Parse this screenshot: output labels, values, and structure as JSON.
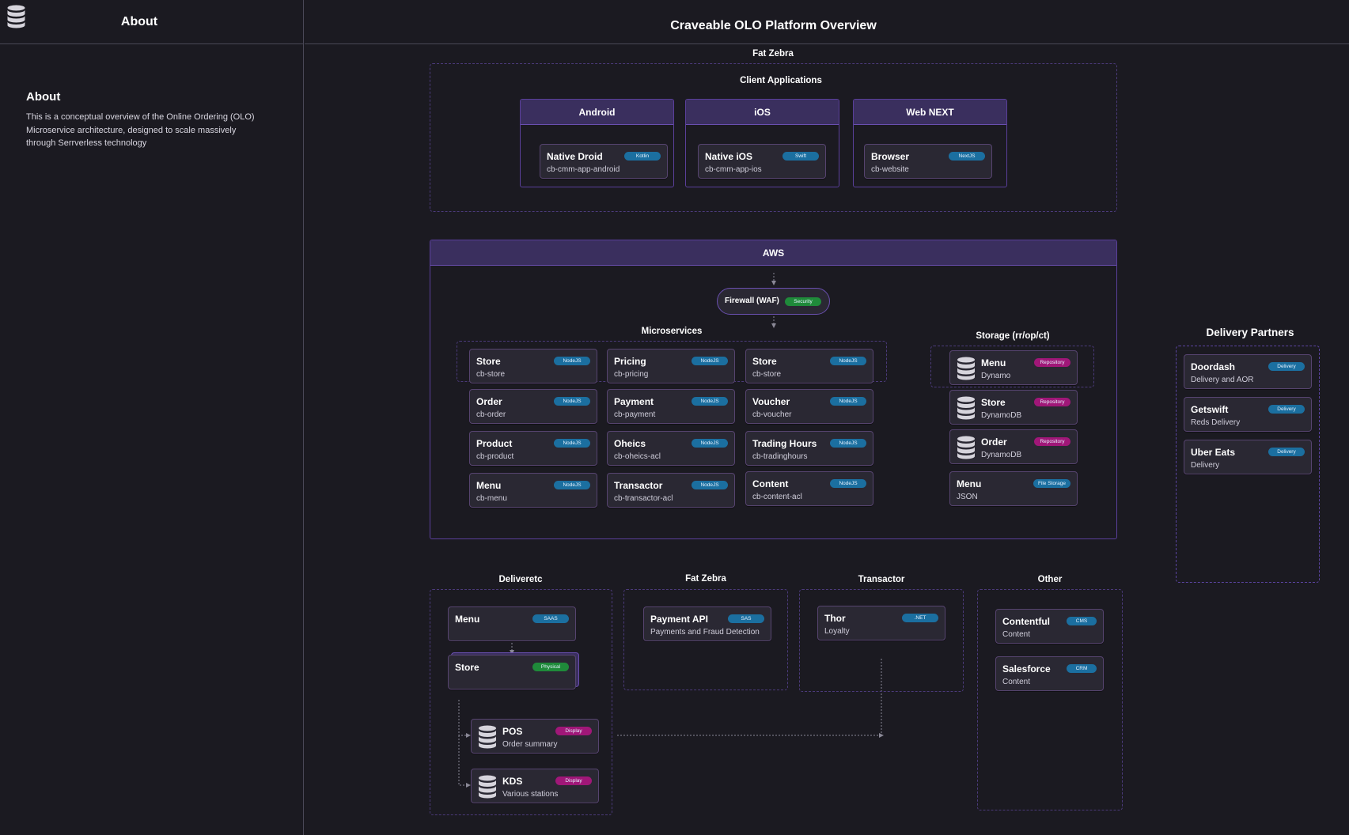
{
  "sidebar": {
    "title": "About",
    "logo_icon": "database-icon",
    "about_heading": "About",
    "about_text": "This is a conceptual overview of the Online Ordering (OLO) Microservice architecture, designed to scale massively through Serrverless technology"
  },
  "header": {
    "title": "Craveable OLO Platform Overview"
  },
  "fat_zebra_top": {
    "label": "Fat Zebra",
    "client_apps_label": "Client Applications",
    "platforms": [
      {
        "name": "Android",
        "card": {
          "title": "Native Droid",
          "sub": "cb-cmm-app-android",
          "tag": "Kotlin"
        }
      },
      {
        "name": "iOS",
        "card": {
          "title": "Native iOS",
          "sub": "cb-cmm-app-ios",
          "tag": "Swift"
        }
      },
      {
        "name": "Web NEXT",
        "card": {
          "title": "Browser",
          "sub": "cb-website",
          "tag": "NextJS"
        }
      }
    ]
  },
  "aws": {
    "label": "AWS",
    "firewall": {
      "title": "Firewall (WAF)",
      "tag": "Security"
    },
    "microservices_label": "Microservices",
    "microservices": [
      {
        "title": "Store",
        "sub": "cb-store",
        "tag": "NodeJS"
      },
      {
        "title": "Pricing",
        "sub": "cb-pricing",
        "tag": "NodeJS"
      },
      {
        "title": "Store",
        "sub": "cb-store",
        "tag": "NodeJS"
      },
      {
        "title": "Order",
        "sub": "cb-order",
        "tag": "NodeJS"
      },
      {
        "title": "Payment",
        "sub": "cb-payment",
        "tag": "NodeJS"
      },
      {
        "title": "Voucher",
        "sub": "cb-voucher",
        "tag": "NodeJS"
      },
      {
        "title": "Product",
        "sub": "cb-product",
        "tag": "NodeJS"
      },
      {
        "title": "Oheics",
        "sub": "cb-oheics-acl",
        "tag": "NodeJS"
      },
      {
        "title": "Trading Hours",
        "sub": "cb-tradinghours",
        "tag": "NodeJS"
      },
      {
        "title": "Menu",
        "sub": "cb-menu",
        "tag": "NodeJS"
      },
      {
        "title": "Transactor",
        "sub": "cb-transactor-acl",
        "tag": "NodeJS"
      },
      {
        "title": "Content",
        "sub": "cb-content-acl",
        "tag": "NodeJS"
      }
    ],
    "storage_label": "Storage (rr/op/ct)",
    "storage": [
      {
        "title": "Menu",
        "sub": "Dynamo",
        "tag": "Repository",
        "icon": "database-icon"
      },
      {
        "title": "Store",
        "sub": "DynamoDB",
        "tag": "Repository",
        "icon": "database-icon"
      },
      {
        "title": "Order",
        "sub": "DynamoDB",
        "tag": "Repository",
        "icon": "database-icon"
      },
      {
        "title": "Menu",
        "sub": "JSON",
        "tag": "File Storage"
      }
    ]
  },
  "delivery_partners": {
    "label": "Delivery Partners",
    "items": [
      {
        "title": "Doordash",
        "sub": "Delivery and AOR",
        "tag": "Delivery"
      },
      {
        "title": "Getswift",
        "sub": "Reds Delivery",
        "tag": "Delivery"
      },
      {
        "title": "Uber Eats",
        "sub": "Delivery",
        "tag": "Delivery"
      }
    ]
  },
  "deliveretc": {
    "label": "Deliveretc",
    "menu": {
      "title": "Menu",
      "tag": "SAAS"
    },
    "store": {
      "title": "Store",
      "tag": "Physical"
    },
    "pos": {
      "title": "POS",
      "sub": "Order summary",
      "tag": "Display",
      "icon": "database-icon"
    },
    "kds": {
      "title": "KDS",
      "sub": "Various stations",
      "tag": "Display",
      "icon": "database-icon"
    }
  },
  "fat_zebra_bottom": {
    "label": "Fat Zebra",
    "card": {
      "title": "Payment API",
      "sub": "Payments and Fraud Detection",
      "tag": "SAS"
    }
  },
  "transactor": {
    "label": "Transactor",
    "card": {
      "title": "Thor",
      "sub": "Loyalty",
      "tag": ".NET"
    }
  },
  "other": {
    "label": "Other",
    "items": [
      {
        "title": "Contentful",
        "sub": "Content",
        "tag": "CMS"
      },
      {
        "title": "Salesforce",
        "sub": "Content",
        "tag": "CRM"
      }
    ]
  },
  "colors": {
    "background": "#1b1a21",
    "card": "#2a2833",
    "border_purple": "#5a3f9a",
    "tag_blue": "#1b6fa0",
    "tag_pink": "#a01778",
    "tag_green": "#1f8a3a"
  }
}
